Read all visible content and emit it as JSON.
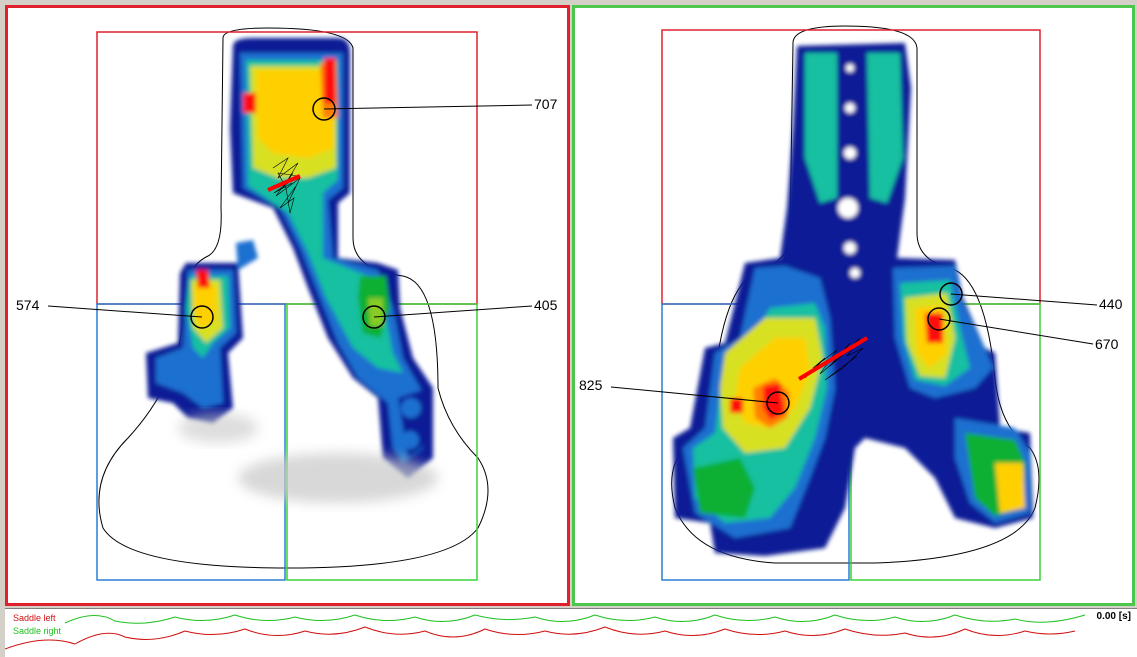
{
  "colors": {
    "left_panel_border": "#e0202c",
    "right_panel_border": "#4cc64c",
    "zone_front": "#e0202c",
    "zone_rear_left": "#2a7fd4",
    "zone_rear_right": "#3ad23a",
    "pressure_scale": [
      "#0a1e96",
      "#1a6fd0",
      "#16c0a0",
      "#10b030",
      "#d8e020",
      "#ffd000",
      "#ff8000",
      "#ff1010"
    ]
  },
  "left_panel": {
    "callouts": {
      "top": "707",
      "left": "574",
      "right": "405"
    }
  },
  "right_panel": {
    "callouts": {
      "upper_right": "440",
      "right": "670",
      "left": "825"
    }
  },
  "timeline": {
    "series_left": "Saddle left",
    "series_right": "Saddle right",
    "time_readout": "0.00 [s]"
  }
}
